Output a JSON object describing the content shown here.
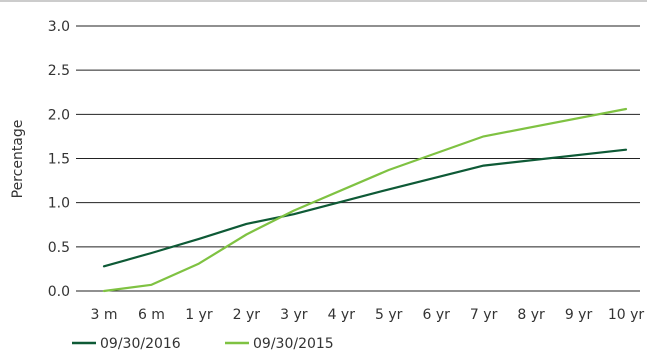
{
  "chart_data": {
    "type": "line",
    "title": "",
    "xlabel": "",
    "ylabel": "Percentage",
    "categories": [
      "3 m",
      "6 m",
      "1 yr",
      "2 yr",
      "3 yr",
      "4 yr",
      "5 yr",
      "6 yr",
      "7 yr",
      "8 yr",
      "9 yr",
      "10 yr"
    ],
    "ylim": [
      0,
      3.0
    ],
    "yticks": [
      "0.0",
      "0.5",
      "1.0",
      "1.5",
      "2.0",
      "2.5",
      "3.0"
    ],
    "grid": "horizontal",
    "legend_position": "bottom-left",
    "series": [
      {
        "name": "09/30/2016",
        "color": "#0e5a36",
        "x": [
          "3 m",
          "6 m",
          "1 yr",
          "2 yr",
          "3 yr",
          "5 yr",
          "7 yr",
          "10 yr"
        ],
        "values": [
          0.28,
          0.43,
          0.59,
          0.76,
          0.87,
          1.15,
          1.42,
          1.6
        ]
      },
      {
        "name": "09/30/2015",
        "color": "#7fc242",
        "x": [
          "3 m",
          "6 m",
          "1 yr",
          "2 yr",
          "3 yr",
          "5 yr",
          "7 yr",
          "10 yr"
        ],
        "values": [
          0.0,
          0.07,
          0.31,
          0.64,
          0.91,
          1.37,
          1.75,
          2.06
        ]
      }
    ]
  }
}
